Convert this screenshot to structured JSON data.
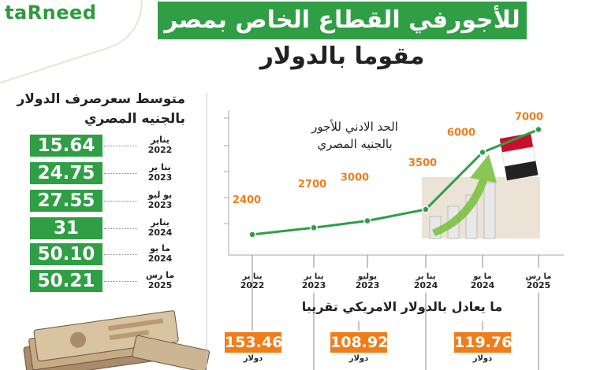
{
  "brand": {
    "logo_text": "taRneed"
  },
  "header": {
    "title": "للأجورفي القطاع الخاص بمصر",
    "subtitle": "مقوما بالدولار"
  },
  "exchange": {
    "heading_line1": "متوسط سعرصرف الدولار",
    "heading_line2": "بالجنيه المصري",
    "rows": [
      {
        "value": "15.64",
        "month": "يناير",
        "year": "2022"
      },
      {
        "value": "24.75",
        "month": "ينا ير",
        "year": "2023"
      },
      {
        "value": "27.55",
        "month": "يو ليو",
        "year": "2023"
      },
      {
        "value": "31",
        "month": "يناير",
        "year": "2024"
      },
      {
        "value": "50.10",
        "month": "ما يو",
        "year": "2024"
      },
      {
        "value": "50.21",
        "month": "ما رس",
        "year": "2025"
      }
    ]
  },
  "usd": {
    "heading": "ما يعادل بالدولار الامريكي تقريبا",
    "unit": "دولار",
    "values": [
      "153.46",
      "108.92",
      "119.76"
    ]
  },
  "colors": {
    "green": "#2f9e44",
    "orange": "#ef7d1a"
  },
  "chart_data": {
    "type": "line",
    "title": "الحد الادني للأجور بالجنيه المصري",
    "title_line1": "الحد الادني للأجور",
    "title_line2": "بالجنيه المصري",
    "categories": [
      {
        "month": "ينا ير",
        "year": "2022"
      },
      {
        "month": "ينا ير",
        "year": "2023"
      },
      {
        "month": "يوليو",
        "year": "2023"
      },
      {
        "month": "ينا ير",
        "year": "2024"
      },
      {
        "month": "ما يو",
        "year": "2024"
      },
      {
        "month": "ما رس",
        "year": "2025"
      }
    ],
    "values": [
      2400,
      2700,
      3000,
      3500,
      6000,
      7000
    ],
    "labels": [
      "2400",
      "2700",
      "3000",
      "3500",
      "6000",
      "7000"
    ],
    "ylim": [
      1500,
      7500
    ],
    "grid": false,
    "line_color": "#2f9e44",
    "label_color": "#ef7d1a"
  }
}
